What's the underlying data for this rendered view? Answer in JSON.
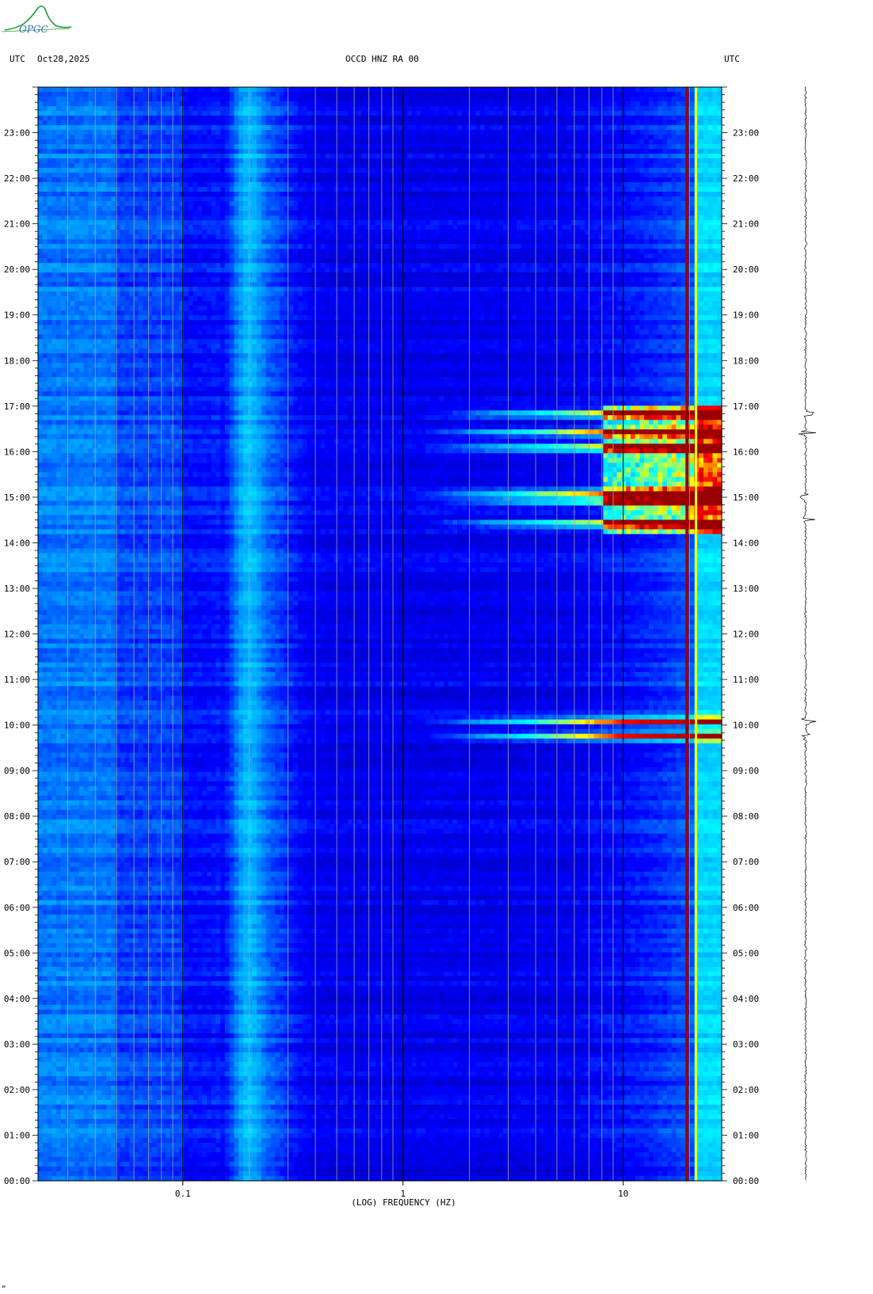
{
  "header": {
    "utc_left": "UTC",
    "date": "Oct28,2025",
    "station": "OCCD HNZ RA 00",
    "utc_right": "UTC"
  },
  "logo": {
    "text": "OPGC"
  },
  "chart_data": {
    "type": "heatmap",
    "title": "OCCD HNZ RA 00",
    "xlabel": "(LOG) FREQUENCY (HZ)",
    "ylabel": "UTC",
    "x_scale": "log",
    "xlim": [
      0.022,
      28
    ],
    "x_ticks": [
      0.1,
      1,
      10
    ],
    "x_tick_labels": [
      "0.1",
      "1",
      "10"
    ],
    "ylim": [
      "00:00",
      "24:00"
    ],
    "y_tick_labels": [
      "00:00",
      "01:00",
      "02:00",
      "03:00",
      "04:00",
      "05:00",
      "06:00",
      "07:00",
      "08:00",
      "09:00",
      "10:00",
      "11:00",
      "12:00",
      "13:00",
      "14:00",
      "15:00",
      "16:00",
      "17:00",
      "18:00",
      "19:00",
      "20:00",
      "21:00",
      "22:00",
      "23:00"
    ],
    "grid": true,
    "colormap": [
      "#000099",
      "#0000ff",
      "#0099ff",
      "#00ffff",
      "#ffff00",
      "#ff0000",
      "#990000"
    ],
    "persistent_lines_hz": [
      19.5,
      21.5
    ],
    "events_utc": [
      "09:45",
      "10:05",
      "14:25",
      "14:55",
      "15:05",
      "16:05",
      "16:25",
      "16:50"
    ],
    "seismogram_events_utc": [
      "09:45",
      "10:05",
      "14:30",
      "15:00",
      "16:25",
      "16:50"
    ]
  },
  "footer": {
    "mark": "„"
  }
}
